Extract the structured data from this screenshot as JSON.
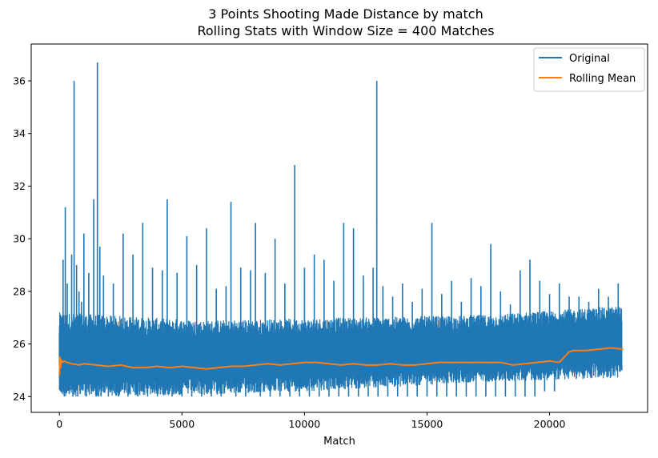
{
  "chart_data": {
    "type": "line",
    "title": "3 Points Shooting Made Distance by match",
    "subtitle": "Rolling Stats with Window Size = 400 Matches",
    "xlabel": "Match",
    "ylabel": "",
    "xlim": [
      -1150,
      24000
    ],
    "ylim": [
      23.4,
      37.4
    ],
    "xticks": [
      0,
      5000,
      10000,
      15000,
      20000
    ],
    "yticks": [
      24,
      26,
      28,
      30,
      32,
      34,
      36
    ],
    "xtick_labels": [
      "0",
      "5000",
      "10000",
      "15000",
      "20000"
    ],
    "ytick_labels": [
      "24",
      "26",
      "28",
      "30",
      "32",
      "34",
      "36"
    ],
    "legend_position": "top-right",
    "grid": false,
    "series": [
      {
        "name": "Original",
        "color": "#1f77b4",
        "x": [
          0,
          50,
          100,
          150,
          200,
          240,
          280,
          320,
          400,
          500,
          550,
          600,
          650,
          700,
          750,
          800,
          850,
          900,
          1000,
          1100,
          1200,
          1300,
          1400,
          1500,
          1550,
          1600,
          1650,
          1700,
          1800,
          2000,
          2200,
          2400,
          2600,
          2800,
          3000,
          3200,
          3400,
          3600,
          3800,
          4000,
          4200,
          4400,
          4600,
          4800,
          5000,
          5200,
          5400,
          5600,
          5800,
          6000,
          6200,
          6400,
          6600,
          6800,
          7000,
          7200,
          7400,
          7600,
          7800,
          8000,
          8200,
          8400,
          8600,
          8800,
          9000,
          9200,
          9400,
          9600,
          9800,
          10000,
          10200,
          10400,
          10600,
          10800,
          11000,
          11200,
          11400,
          11600,
          11800,
          12000,
          12200,
          12400,
          12600,
          12800,
          12950,
          13000,
          13200,
          13400,
          13600,
          13800,
          14000,
          14200,
          14400,
          14600,
          14800,
          15000,
          15200,
          15400,
          15600,
          15800,
          16000,
          16200,
          16400,
          16600,
          16800,
          17000,
          17200,
          17400,
          17600,
          17800,
          18000,
          18200,
          18400,
          18600,
          18800,
          19000,
          19200,
          19400,
          19600,
          19800,
          20000,
          20200,
          20400,
          20600,
          20800,
          21000,
          21200,
          21400,
          21600,
          21800,
          22000,
          22200,
          22400,
          22600,
          22800,
          22950
        ],
        "values": [
          26.4,
          24.2,
          27.0,
          29.2,
          24.0,
          31.2,
          25.0,
          28.3,
          24.1,
          29.4,
          24.0,
          36.0,
          24.2,
          29.0,
          24.0,
          28.0,
          24.1,
          27.6,
          30.2,
          24.0,
          28.7,
          24.1,
          31.5,
          24.0,
          36.7,
          24.0,
          29.7,
          24.0,
          28.6,
          24.0,
          28.3,
          24.0,
          30.2,
          24.0,
          29.4,
          24.0,
          30.6,
          24.0,
          28.9,
          24.0,
          28.8,
          31.5,
          24.0,
          28.7,
          24.0,
          30.1,
          24.0,
          29.0,
          24.0,
          30.4,
          24.0,
          28.1,
          24.0,
          28.2,
          31.4,
          24.0,
          28.9,
          24.0,
          28.8,
          30.6,
          24.0,
          28.7,
          24.0,
          30.0,
          24.0,
          28.3,
          24.0,
          32.8,
          24.0,
          28.9,
          24.0,
          29.4,
          24.0,
          29.2,
          24.0,
          28.4,
          24.0,
          30.6,
          24.0,
          30.4,
          24.0,
          28.6,
          24.0,
          28.9,
          36.0,
          24.0,
          28.2,
          24.0,
          27.8,
          24.0,
          28.3,
          24.0,
          27.6,
          24.0,
          28.1,
          24.0,
          30.6,
          24.0,
          27.9,
          24.0,
          28.4,
          24.0,
          27.6,
          24.0,
          28.5,
          24.0,
          28.2,
          24.0,
          29.8,
          24.0,
          28.0,
          24.0,
          27.5,
          24.0,
          28.8,
          24.0,
          29.2,
          24.0,
          28.4,
          24.2,
          27.9,
          24.2,
          28.3,
          24.8,
          27.8,
          25.0,
          27.8,
          24.8,
          27.6,
          24.8,
          28.1,
          24.9,
          27.8,
          24.8,
          28.3,
          25.0
        ],
        "baseline_min": [
          24.0,
          24.05,
          24.25,
          24.55,
          24.7
        ],
        "baseline_max": [
          27.2,
          26.9,
          27.0,
          27.1,
          27.45
        ]
      },
      {
        "name": "Rolling Mean",
        "color": "#ff7f0e",
        "x": [
          0,
          20,
          50,
          70,
          100,
          200,
          300,
          500,
          800,
          1000,
          1500,
          2000,
          2500,
          3000,
          3500,
          4000,
          4500,
          5000,
          5500,
          6000,
          6500,
          7000,
          7500,
          8000,
          8500,
          9000,
          9500,
          10000,
          10500,
          11000,
          11500,
          12000,
          12500,
          13000,
          13500,
          14000,
          14500,
          15000,
          15500,
          16000,
          16500,
          17000,
          17500,
          18000,
          18500,
          19000,
          19500,
          20000,
          20400,
          20600,
          20800,
          21000,
          21500,
          22000,
          22500,
          23000
        ],
        "values": [
          24.8,
          25.5,
          25.1,
          25.4,
          25.3,
          25.35,
          25.3,
          25.25,
          25.2,
          25.25,
          25.2,
          25.15,
          25.2,
          25.1,
          25.1,
          25.15,
          25.1,
          25.15,
          25.1,
          25.05,
          25.1,
          25.15,
          25.15,
          25.2,
          25.25,
          25.2,
          25.25,
          25.3,
          25.3,
          25.25,
          25.2,
          25.25,
          25.2,
          25.2,
          25.25,
          25.2,
          25.2,
          25.25,
          25.3,
          25.3,
          25.3,
          25.3,
          25.3,
          25.3,
          25.2,
          25.25,
          25.3,
          25.35,
          25.3,
          25.5,
          25.7,
          25.75,
          25.75,
          25.8,
          25.85,
          25.8
        ]
      }
    ]
  }
}
